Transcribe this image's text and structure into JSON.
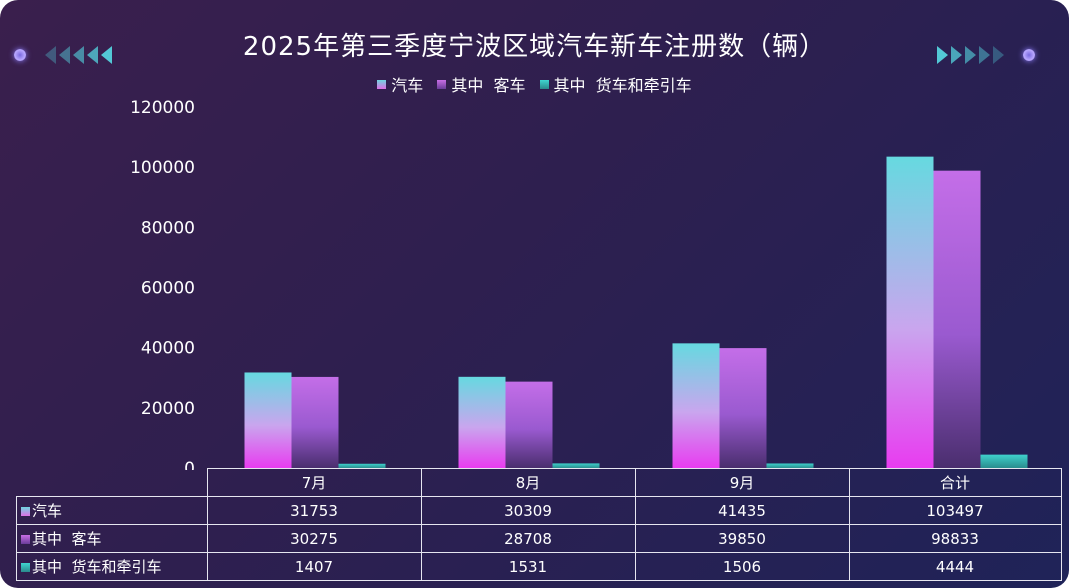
{
  "title": "2025年第三季度宁波区域汽车新车注册数（辆）",
  "legend": [
    {
      "label": "汽车",
      "color": "#e06ee6"
    },
    {
      "label": "其中  客车",
      "color": "#b466e0"
    },
    {
      "label": "其中  货车和牵引车",
      "color": "#3fc6c0"
    }
  ],
  "chart_data": {
    "type": "bar",
    "title": "2025年第三季度宁波区域汽车新车注册数（辆）",
    "categories": [
      "7月",
      "8月",
      "9月",
      "合计"
    ],
    "series": [
      {
        "name": "汽车",
        "values": [
          31753,
          30309,
          41435,
          103497
        ]
      },
      {
        "name": "其中  客车",
        "values": [
          30275,
          28708,
          39850,
          98833
        ]
      },
      {
        "name": "其中  货车和牵引车",
        "values": [
          1407,
          1531,
          1506,
          4444
        ]
      }
    ],
    "ylim": [
      0,
      120000
    ],
    "yticks": [
      0,
      20000,
      40000,
      60000,
      80000,
      100000,
      120000
    ],
    "grid": false,
    "legend_position": "top-center",
    "data_table": true
  },
  "table": {
    "headers": [
      "7月",
      "8月",
      "9月",
      "合计"
    ],
    "rows": [
      {
        "label": "汽车",
        "values": [
          "31753",
          "30309",
          "41435",
          "103497"
        ]
      },
      {
        "label": "其中  客车",
        "values": [
          "30275",
          "28708",
          "39850",
          "98833"
        ]
      },
      {
        "label": "其中  货车和牵引车",
        "values": [
          "1407",
          "1531",
          "1506",
          "4444"
        ]
      }
    ]
  }
}
